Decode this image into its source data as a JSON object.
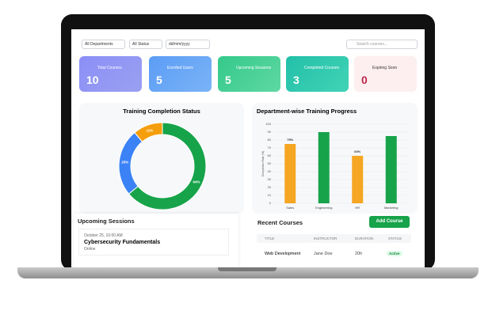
{
  "filters": {
    "department": "All Departments",
    "status": "All Status",
    "date": "dd/mm/yyyy",
    "search": "Search courses..."
  },
  "cards": [
    {
      "label": "Total Courses",
      "value": "10"
    },
    {
      "label": "Enrolled Users",
      "value": "5"
    },
    {
      "label": "Upcoming Sessions",
      "value": "5"
    },
    {
      "label": "Completed Courses",
      "value": "3"
    },
    {
      "label": "Expiring Soon",
      "value": "0"
    }
  ],
  "chart_data": [
    {
      "type": "pie",
      "title": "Training Completion Status",
      "values": [
        64,
        25,
        11
      ],
      "value_labels": [
        "64%",
        "25%",
        "11%"
      ],
      "colors": [
        "#16a34a",
        "#3b82f6",
        "#f59e0b"
      ],
      "donut": true
    },
    {
      "type": "bar",
      "title": "Department-wise Training Progress",
      "y_label": "Completion Rate (%)",
      "categories": [
        "Sales",
        "Engineering",
        "HR",
        "Marketing"
      ],
      "values": [
        75,
        90,
        60,
        85
      ],
      "value_labels": [
        "75%",
        null,
        "60%",
        null
      ],
      "colors": [
        "#f5a623",
        "#16a34a",
        "#f5a623",
        "#16a34a"
      ],
      "ylim": [
        0,
        100
      ],
      "yticks": [
        0,
        10,
        20,
        30,
        40,
        50,
        60,
        70,
        80,
        90,
        100
      ],
      "grid": true
    }
  ],
  "sessions": {
    "title": "Upcoming Sessions",
    "items": [
      {
        "date": "October 25, 10:00 AM",
        "name": "Cybersecurity Fundamentals",
        "mode": "Online"
      }
    ]
  },
  "courses": {
    "title": "Recent Courses",
    "button": "Add Course",
    "columns": [
      "TITLE",
      "INSTRUCTOR",
      "DURATION",
      "STATUS"
    ],
    "rows": [
      [
        "Web Development",
        "Jane Doe",
        "20h",
        "Active"
      ]
    ]
  }
}
